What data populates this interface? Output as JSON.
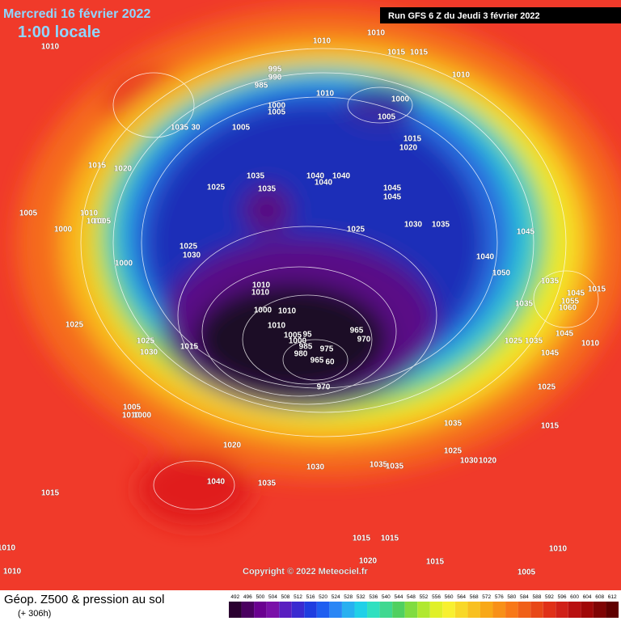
{
  "header": {
    "date": "Mercredi 16 février 2022",
    "time": "1:00 locale",
    "run": "Run GFS 6 Z du Jeudi 3 février 2022"
  },
  "footer": {
    "title": "Géop. Z500 & pression au sol",
    "lead": "(+ 306h)",
    "copyright": "Copyright © 2022 Meteociel.fr"
  },
  "legend": {
    "values": [
      492,
      496,
      500,
      504,
      508,
      512,
      516,
      520,
      524,
      528,
      532,
      536,
      540,
      544,
      548,
      552,
      556,
      560,
      564,
      568,
      572,
      576,
      580,
      584,
      588,
      592,
      596,
      600,
      604,
      608,
      612
    ]
  },
  "isobar_labels": [
    1010,
    1010,
    1010,
    1015,
    1015,
    1010,
    995,
    990,
    985,
    1010,
    1000,
    1005,
    1005,
    1035,
    30,
    1000,
    1005,
    1015,
    1020,
    1015,
    1020,
    1025,
    1035,
    1035,
    1040,
    1040,
    1040,
    1045,
    1045,
    1005,
    1010,
    1010,
    1005,
    1000,
    1030,
    1035,
    1025,
    1045,
    1025,
    1030,
    1000,
    1040,
    1050,
    1035,
    1015,
    1045,
    1055,
    1060,
    1010,
    1010,
    1010,
    1000,
    1035,
    1025,
    1010,
    1005,
    95,
    1000,
    985,
    980,
    975,
    965,
    970,
    965,
    60,
    1045,
    1025,
    1035,
    1010,
    1025,
    1030,
    1015,
    1045,
    970,
    1025,
    1005,
    1010,
    1000,
    1035,
    1015,
    1020,
    1025,
    1030,
    1020,
    1030,
    1035,
    1035,
    1040,
    1035,
    1015,
    1015,
    1015,
    1010,
    1010,
    1020,
    1015,
    1010,
    1005
  ]
}
